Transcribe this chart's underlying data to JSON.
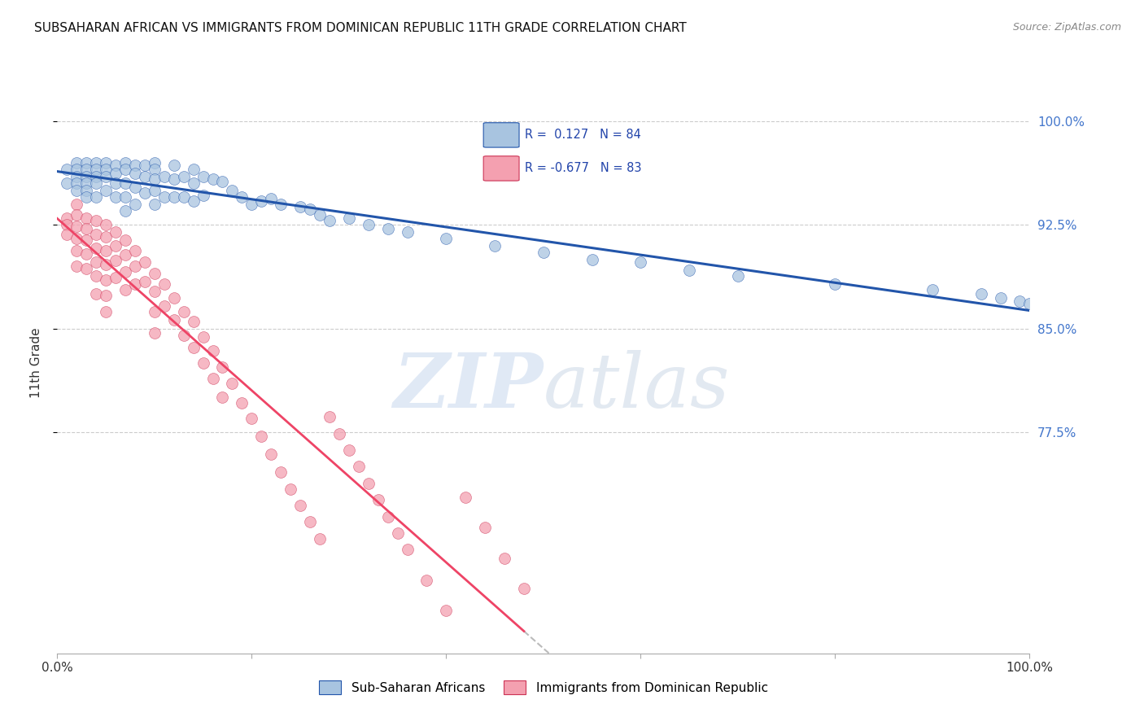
{
  "title": "SUBSAHARAN AFRICAN VS IMMIGRANTS FROM DOMINICAN REPUBLIC 11TH GRADE CORRELATION CHART",
  "source": "Source: ZipAtlas.com",
  "ylabel": "11th Grade",
  "blue_R": 0.127,
  "blue_N": 84,
  "pink_R": -0.677,
  "pink_N": 83,
  "legend_label_blue": "Sub-Saharan Africans",
  "legend_label_pink": "Immigrants from Dominican Republic",
  "blue_color": "#A8C4E0",
  "pink_color": "#F4A0B0",
  "blue_line_color": "#2255AA",
  "pink_line_color": "#EE4466",
  "watermark_zip": "ZIP",
  "watermark_atlas": "atlas",
  "xlim": [
    0.0,
    1.0
  ],
  "ylim": [
    0.615,
    1.035
  ],
  "y_tick_positions": [
    0.775,
    0.85,
    0.925,
    1.0
  ],
  "y_tick_labels": [
    "77.5%",
    "85.0%",
    "92.5%",
    "100.0%"
  ],
  "blue_scatter_x": [
    0.01,
    0.01,
    0.02,
    0.02,
    0.02,
    0.02,
    0.02,
    0.03,
    0.03,
    0.03,
    0.03,
    0.03,
    0.03,
    0.04,
    0.04,
    0.04,
    0.04,
    0.04,
    0.05,
    0.05,
    0.05,
    0.05,
    0.06,
    0.06,
    0.06,
    0.06,
    0.07,
    0.07,
    0.07,
    0.07,
    0.07,
    0.08,
    0.08,
    0.08,
    0.08,
    0.09,
    0.09,
    0.09,
    0.1,
    0.1,
    0.1,
    0.1,
    0.1,
    0.11,
    0.11,
    0.12,
    0.12,
    0.12,
    0.13,
    0.13,
    0.14,
    0.14,
    0.14,
    0.15,
    0.15,
    0.16,
    0.17,
    0.18,
    0.19,
    0.2,
    0.21,
    0.22,
    0.23,
    0.25,
    0.26,
    0.27,
    0.28,
    0.3,
    0.32,
    0.34,
    0.36,
    0.4,
    0.45,
    0.5,
    0.55,
    0.6,
    0.65,
    0.7,
    0.8,
    0.9,
    0.95,
    0.97,
    0.99,
    1.0
  ],
  "blue_scatter_y": [
    0.965,
    0.955,
    0.97,
    0.965,
    0.96,
    0.955,
    0.95,
    0.97,
    0.965,
    0.96,
    0.955,
    0.95,
    0.945,
    0.97,
    0.965,
    0.96,
    0.955,
    0.945,
    0.97,
    0.965,
    0.96,
    0.95,
    0.968,
    0.962,
    0.955,
    0.945,
    0.97,
    0.965,
    0.955,
    0.945,
    0.935,
    0.968,
    0.962,
    0.952,
    0.94,
    0.968,
    0.96,
    0.948,
    0.97,
    0.965,
    0.958,
    0.95,
    0.94,
    0.96,
    0.945,
    0.968,
    0.958,
    0.945,
    0.96,
    0.945,
    0.965,
    0.955,
    0.942,
    0.96,
    0.946,
    0.958,
    0.956,
    0.95,
    0.945,
    0.94,
    0.942,
    0.944,
    0.94,
    0.938,
    0.936,
    0.932,
    0.928,
    0.93,
    0.925,
    0.922,
    0.92,
    0.915,
    0.91,
    0.905,
    0.9,
    0.898,
    0.892,
    0.888,
    0.882,
    0.878,
    0.875,
    0.872,
    0.87,
    0.868
  ],
  "pink_scatter_x": [
    0.01,
    0.01,
    0.01,
    0.02,
    0.02,
    0.02,
    0.02,
    0.02,
    0.02,
    0.03,
    0.03,
    0.03,
    0.03,
    0.03,
    0.04,
    0.04,
    0.04,
    0.04,
    0.04,
    0.04,
    0.05,
    0.05,
    0.05,
    0.05,
    0.05,
    0.05,
    0.05,
    0.06,
    0.06,
    0.06,
    0.06,
    0.07,
    0.07,
    0.07,
    0.07,
    0.08,
    0.08,
    0.08,
    0.09,
    0.09,
    0.1,
    0.1,
    0.1,
    0.1,
    0.11,
    0.11,
    0.12,
    0.12,
    0.13,
    0.13,
    0.14,
    0.14,
    0.15,
    0.15,
    0.16,
    0.16,
    0.17,
    0.17,
    0.18,
    0.19,
    0.2,
    0.21,
    0.22,
    0.23,
    0.24,
    0.25,
    0.26,
    0.27,
    0.28,
    0.29,
    0.3,
    0.31,
    0.32,
    0.33,
    0.34,
    0.35,
    0.36,
    0.38,
    0.4,
    0.42,
    0.44,
    0.46,
    0.48
  ],
  "pink_scatter_y": [
    0.93,
    0.925,
    0.918,
    0.94,
    0.932,
    0.924,
    0.915,
    0.906,
    0.895,
    0.93,
    0.922,
    0.914,
    0.904,
    0.893,
    0.928,
    0.918,
    0.908,
    0.898,
    0.888,
    0.875,
    0.925,
    0.916,
    0.906,
    0.896,
    0.885,
    0.874,
    0.862,
    0.92,
    0.91,
    0.899,
    0.887,
    0.914,
    0.903,
    0.891,
    0.878,
    0.906,
    0.895,
    0.882,
    0.898,
    0.884,
    0.89,
    0.877,
    0.862,
    0.847,
    0.882,
    0.866,
    0.872,
    0.856,
    0.862,
    0.845,
    0.855,
    0.836,
    0.844,
    0.825,
    0.834,
    0.814,
    0.822,
    0.8,
    0.81,
    0.796,
    0.785,
    0.772,
    0.759,
    0.746,
    0.734,
    0.722,
    0.71,
    0.698,
    0.786,
    0.774,
    0.762,
    0.75,
    0.738,
    0.726,
    0.714,
    0.702,
    0.69,
    0.668,
    0.646,
    0.728,
    0.706,
    0.684,
    0.662
  ]
}
